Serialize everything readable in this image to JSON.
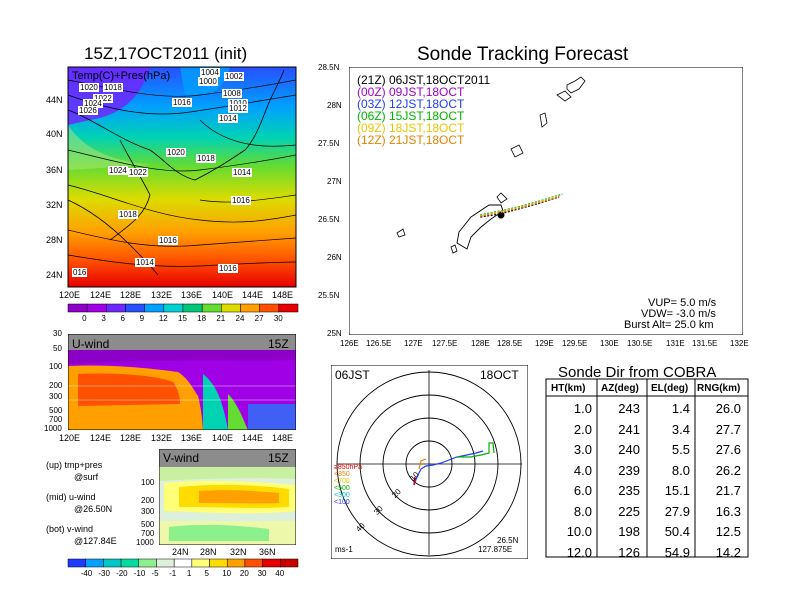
{
  "left_panel": {
    "title": "15Z,17OCT2011 (init)",
    "map_label": "Temp(C)+Pres(hPa)",
    "lat_ticks": [
      "44N",
      "40N",
      "36N",
      "32N",
      "28N",
      "24N"
    ],
    "lon_ticks": [
      "120E",
      "124E",
      "128E",
      "132E",
      "136E",
      "140E",
      "144E",
      "148E"
    ],
    "pressure_labels": [
      {
        "text": "1004"
      },
      {
        "text": "1002"
      },
      {
        "text": "1000"
      },
      {
        "text": "1020"
      },
      {
        "text": "1018"
      },
      {
        "text": "1022"
      },
      {
        "text": "1024"
      },
      {
        "text": "1026"
      },
      {
        "text": "1016"
      },
      {
        "text": "1008"
      },
      {
        "text": "1010"
      },
      {
        "text": "1012"
      },
      {
        "text": "1014"
      },
      {
        "text": "1020"
      },
      {
        "text": "1018"
      },
      {
        "text": "1024"
      },
      {
        "text": "1022"
      },
      {
        "text": "1014"
      },
      {
        "text": "1016"
      },
      {
        "text": "1018"
      },
      {
        "text": "1016"
      },
      {
        "text": "1014"
      },
      {
        "text": "1016"
      },
      {
        "text": "016"
      }
    ],
    "temp_colorbar": {
      "labels": [
        "0",
        "3",
        "6",
        "9",
        "12",
        "15",
        "18",
        "21",
        "24",
        "27",
        "30"
      ],
      "colors": [
        "#8c00c8",
        "#a000e6",
        "#6e28ff",
        "#2850ff",
        "#00a0ff",
        "#00d2d2",
        "#00c878",
        "#64dc32",
        "#dcdc00",
        "#ffa000",
        "#ff5000",
        "#e60000"
      ]
    }
  },
  "u_wind": {
    "label": "U-wind",
    "time": "15Z",
    "y_ticks": [
      "30",
      "50",
      "100",
      "200",
      "300",
      "500",
      "700",
      "1000"
    ],
    "x_ticks": [
      "120E",
      "124E",
      "128E",
      "132E",
      "136E",
      "140E",
      "144E",
      "148E"
    ]
  },
  "v_wind": {
    "label": "V-wind",
    "time": "15Z",
    "y_ticks": [
      "100",
      "200",
      "300",
      "500",
      "700",
      "1000"
    ],
    "x_ticks": [
      "24N",
      "28N",
      "32N",
      "36N"
    ]
  },
  "side_notes": [
    {
      "title": "(up) tmp+pres",
      "sub": "@surf"
    },
    {
      "title": "(mid) u-wind",
      "sub": "@26.50N"
    },
    {
      "title": "(bot) v-wind",
      "sub": "@127.84E"
    }
  ],
  "wind_colorbar": {
    "labels": [
      "-40",
      "-30",
      "-20",
      "-10",
      "-5",
      "-1",
      "1",
      "5",
      "10",
      "20",
      "30",
      "40"
    ],
    "colors": [
      "#1e3cff",
      "#00a0ff",
      "#00c8c8",
      "#00dca0",
      "#8cf08c",
      "#dcf0dc",
      "#ffffff",
      "#ffff78",
      "#ffdc00",
      "#ffa000",
      "#ff5000",
      "#e60000",
      "#c80000"
    ]
  },
  "forecast": {
    "title": "Sonde Tracking Forecast",
    "legend": [
      {
        "text": "(21Z) 06JST,18OCT2011",
        "color": "#000000"
      },
      {
        "text": "(00Z) 09JST,18OCT",
        "color": "#a000c8"
      },
      {
        "text": "(03Z) 12JST,18OCT",
        "color": "#1e3cff"
      },
      {
        "text": "(06Z) 15JST,18OCT",
        "color": "#00b400"
      },
      {
        "text": "(09Z) 18JST,18OCT",
        "color": "#e6c800"
      },
      {
        "text": "(12Z) 21JST,18OCT",
        "color": "#e68200"
      }
    ],
    "lat_ticks": [
      "28.5N",
      "28N",
      "27.5N",
      "27N",
      "26.5N",
      "26N",
      "25.5N",
      "25N"
    ],
    "lon_ticks": [
      "126E",
      "126.5E",
      "127E",
      "127.5E",
      "128E",
      "128.5E",
      "129E",
      "129.5E",
      "130E",
      "130.5E",
      "131E",
      "131.5E",
      "132E"
    ],
    "params": [
      "VUP= 5.0 m/s",
      "VDW= -3.0 m/s",
      "Burst Alt= 25.0 km"
    ]
  },
  "hodograph": {
    "time_left": "06JST",
    "date_right": "18OCT",
    "unit": "ms-1",
    "loc_lat": "26.5N",
    "loc_lon": "127.875E",
    "ring_labels": [
      "10",
      "20",
      "30",
      "40"
    ],
    "level_legend": [
      {
        "text": "≥850hPa",
        "color": "#e60000"
      },
      {
        "text": "<850",
        "color": "#e68200"
      },
      {
        "text": "<700",
        "color": "#dcc800"
      },
      {
        "text": "<500",
        "color": "#00b400"
      },
      {
        "text": "<300",
        "color": "#00c8c8"
      },
      {
        "text": "<100",
        "color": "#1e3cff"
      }
    ]
  },
  "sonde_table": {
    "title": "Sonde Dir from COBRA",
    "headers": [
      "HT(km)",
      "AZ(deg)",
      "EL(deg)",
      "RNG(km)"
    ],
    "rows": [
      [
        "1.0",
        "243",
        "1.4",
        "26.0"
      ],
      [
        "2.0",
        "241",
        "3.4",
        "27.7"
      ],
      [
        "3.0",
        "240",
        "5.5",
        "27.6"
      ],
      [
        "4.0",
        "239",
        "8.0",
        "26.2"
      ],
      [
        "6.0",
        "235",
        "15.1",
        "21.7"
      ],
      [
        "8.0",
        "225",
        "27.9",
        "16.3"
      ],
      [
        "10.0",
        "198",
        "50.4",
        "12.5"
      ],
      [
        "12.0",
        "126",
        "54.9",
        "14.2"
      ]
    ]
  },
  "chart_data": [
    {
      "type": "heatmap",
      "title": "15Z,17OCT2011 (init)",
      "subtitle": "Temp(C)+Pres(hPa)",
      "x_ticks": [
        "120E",
        "124E",
        "128E",
        "132E",
        "136E",
        "140E",
        "144E",
        "148E"
      ],
      "y_ticks": [
        "44N",
        "40N",
        "36N",
        "32N",
        "28N",
        "24N"
      ],
      "colorbar": [
        0,
        3,
        6,
        9,
        12,
        15,
        18,
        21,
        24,
        27,
        30
      ]
    },
    {
      "type": "line",
      "title": "Sonde Tracking Forecast",
      "xlim": [
        126,
        132
      ],
      "ylim": [
        25,
        28.5
      ],
      "series": [
        {
          "name": "(21Z) 06JST,18OCT2011",
          "x": [
            128.0,
            128.3,
            128.6,
            128.9,
            129.2
          ],
          "y": [
            26.54,
            26.58,
            26.65,
            26.72,
            26.8
          ]
        },
        {
          "name": "(00Z) 09JST,18OCT",
          "x": [
            128.0,
            128.3,
            128.6,
            128.9,
            129.2
          ],
          "y": [
            26.55,
            26.6,
            26.66,
            26.73,
            26.81
          ]
        },
        {
          "name": "(03Z) 12JST,18OCT",
          "x": [
            128.0,
            128.3,
            128.6,
            128.9,
            129.2
          ],
          "y": [
            26.56,
            26.61,
            26.67,
            26.74,
            26.82
          ]
        },
        {
          "name": "(06Z) 15JST,18OCT",
          "x": [
            128.0,
            128.3,
            128.6,
            128.9,
            129.25
          ],
          "y": [
            26.57,
            26.62,
            26.68,
            26.75,
            26.84
          ]
        },
        {
          "name": "(09Z) 18JST,18OCT",
          "x": [
            128.0,
            128.3,
            128.6,
            128.9,
            129.2
          ],
          "y": [
            26.56,
            26.61,
            26.67,
            26.74,
            26.82
          ]
        },
        {
          "name": "(12Z) 21JST,18OCT",
          "x": [
            128.0,
            128.3,
            128.6,
            128.9,
            129.2
          ],
          "y": [
            26.55,
            26.6,
            26.66,
            26.73,
            26.8
          ]
        }
      ]
    },
    {
      "type": "table",
      "title": "Sonde Dir from COBRA",
      "columns": [
        "HT(km)",
        "AZ(deg)",
        "EL(deg)",
        "RNG(km)"
      ],
      "rows": [
        [
          1.0,
          243,
          1.4,
          26.0
        ],
        [
          2.0,
          241,
          3.4,
          27.7
        ],
        [
          3.0,
          240,
          5.5,
          27.6
        ],
        [
          4.0,
          239,
          8.0,
          26.2
        ],
        [
          6.0,
          235,
          15.1,
          21.7
        ],
        [
          8.0,
          225,
          27.9,
          16.3
        ],
        [
          10.0,
          198,
          50.4,
          12.5
        ],
        [
          12.0,
          126,
          54.9,
          14.2
        ]
      ]
    }
  ]
}
